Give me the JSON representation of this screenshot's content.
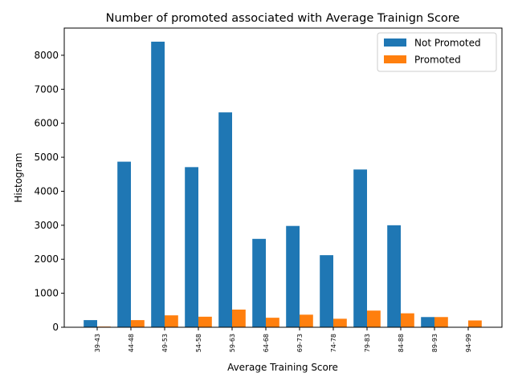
{
  "chart_data": {
    "type": "bar",
    "title": "Number of promoted associated with Average Trainign Score",
    "xlabel": "Average Training Score",
    "ylabel": "Histogram",
    "ylim": [
      0,
      8800
    ],
    "yticks": [
      0,
      1000,
      2000,
      3000,
      4000,
      5000,
      6000,
      7000,
      8000
    ],
    "categories": [
      "39-43",
      "44-48",
      "49-53",
      "54-58",
      "59-63",
      "64-68",
      "69-73",
      "74-78",
      "79-83",
      "84-88",
      "89-93",
      "94-99"
    ],
    "series": [
      {
        "name": "Not Promoted",
        "color": "#1f77b4",
        "values": [
          210,
          4870,
          8400,
          4710,
          6320,
          2600,
          2980,
          2120,
          4640,
          3000,
          300,
          0
        ]
      },
      {
        "name": "Promoted",
        "color": "#ff7f0e",
        "values": [
          20,
          210,
          350,
          310,
          520,
          280,
          370,
          250,
          490,
          410,
          300,
          200
        ]
      }
    ],
    "legend_position": "top-right",
    "grid": false
  }
}
